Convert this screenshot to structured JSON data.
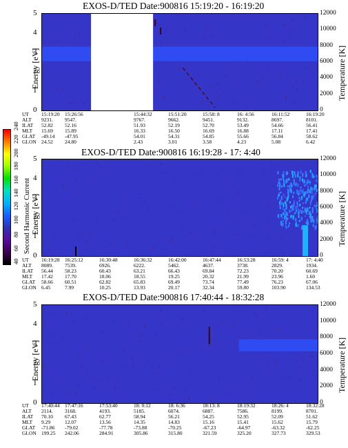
{
  "panels": [
    {
      "title": "EXOS-D/TED   Date:900816  15:19:20 - 16:19:20",
      "y_label": "Energy [eV]",
      "y2_label": "Temperature [K]",
      "y_ticks": [
        "0",
        "1",
        "2",
        "3",
        "4",
        "5"
      ],
      "y2_ticks": [
        "0",
        "2000",
        "4000",
        "6000",
        "8000",
        "10000",
        "12000"
      ],
      "row_labels": [
        "UT",
        "ALT",
        "ILAT",
        "MLT",
        "GLAT",
        "GLON"
      ],
      "columns": [
        [
          "15:19:20",
          "9231.",
          "52.82",
          "15.69",
          "-49.14",
          "24.52"
        ],
        [
          "15:26:56",
          "9547.",
          "52.16",
          "15.89",
          "-47.95",
          "24.80"
        ],
        [
          "",
          "",
          "",
          "",
          "",
          ""
        ],
        [
          "15:44:32",
          "9767.",
          "51.93",
          "16.33",
          "54.01",
          "2.43"
        ],
        [
          "15:51:20",
          "9662.",
          "52.19",
          "16.50",
          "54.31",
          "3.01"
        ],
        [
          "15:58: 8",
          "9451.",
          "52.70",
          "16.69",
          "54.85",
          "3.58"
        ],
        [
          "16: 4:56",
          "9132.",
          "53.49",
          "16.88",
          "55.66",
          "4.23"
        ],
        [
          "16:11:52",
          "8697.",
          "54.66",
          "17.11",
          "56.84",
          "5.08"
        ],
        [
          "16:19:20",
          "8101.",
          "56.41",
          "17.41",
          "58.62",
          "6.42"
        ]
      ]
    },
    {
      "title": "EXOS-D/TED   Date:900816  16:19:28 - 17: 4:40",
      "y_label": "Energy [eV]",
      "y2_label": "Temperature [K]",
      "y_ticks": [
        "0",
        "1",
        "2",
        "3",
        "4",
        "5"
      ],
      "y2_ticks": [
        "0",
        "2000",
        "4000",
        "6000",
        "8000",
        "10000",
        "12000"
      ],
      "row_labels": [
        "UT",
        "ALT",
        "ILAT",
        "MLT",
        "GLAT",
        "GLON"
      ],
      "columns": [
        [
          "16:19:28",
          "8089.",
          "56.44",
          "17.42",
          "58.66",
          "6.45"
        ],
        [
          "16:25:12",
          "7539.",
          "58.23",
          "17.70",
          "60.51",
          "7.99"
        ],
        [
          "16:30:48",
          "6926.",
          "60.43",
          "18.06",
          "62.82",
          "10.25"
        ],
        [
          "16:36:32",
          "6222.",
          "63.21",
          "18.55",
          "65.83",
          "13.93"
        ],
        [
          "16:42:00",
          "5462.",
          "66.43",
          "19.25",
          "69.49",
          "20.17"
        ],
        [
          "16:47:44",
          "4637.",
          "69.84",
          "20.32",
          "73.74",
          "32.34"
        ],
        [
          "16:53:28",
          "3738.",
          "72.23",
          "21.99",
          "77.49",
          "59.80"
        ],
        [
          "16:59: 4",
          "2829.",
          "70.20",
          "23.96",
          "76.23",
          "103.90"
        ],
        [
          "17: 4:40",
          "1934.",
          "60.69",
          "1.60",
          "67.06",
          "134.53"
        ]
      ]
    },
    {
      "title": "EXOS-D/TED   Date:900816  17:40:44 - 18:32:28",
      "y_label": "Energy [eV]",
      "y2_label": "Temperature [K]",
      "y_ticks": [
        "0",
        "1",
        "2",
        "3",
        "4",
        "5"
      ],
      "y2_ticks": [
        "0",
        "2000",
        "4000",
        "6000",
        "8000",
        "10000",
        "12000"
      ],
      "row_labels": [
        "UT",
        "ALT",
        "ILAT",
        "MLT",
        "GLAT",
        "GLON"
      ],
      "columns": [
        [
          "17:40:44",
          "2114.",
          "70.10",
          "9.29",
          "-71.86",
          "199.25"
        ],
        [
          "17:47:16",
          "3168.",
          "67.43",
          "12.07",
          "-79.02",
          "242.06"
        ],
        [
          "17:53:40",
          "4193.",
          "62.77",
          "13.56",
          "-77.78",
          "284.91"
        ],
        [
          "18: 0:12",
          "5185.",
          "58.94",
          "14.35",
          "-73.88",
          "305.86"
        ],
        [
          "18: 6:36",
          "6074.",
          "56.21",
          "14.83",
          "-70.25",
          "315.80"
        ],
        [
          "18:13: 8",
          "6887.",
          "54.25",
          "15.16",
          "-67.23",
          "321.59"
        ],
        [
          "18:19:32",
          "7586.",
          "52.95",
          "15.41",
          "-64.97",
          "325.20"
        ],
        [
          "18:26: 4",
          "8199.",
          "52.09",
          "15.62",
          "-63.32",
          "327.73"
        ],
        [
          "18:32:28",
          "8701.",
          "51.62",
          "15.79",
          "-62.25",
          "329.53"
        ]
      ]
    }
  ],
  "colorbar": {
    "label": "Second Harmonic Current",
    "ticks": [
      "40",
      "60",
      "80",
      "100",
      "120",
      "140",
      "160",
      "180",
      "200",
      "220",
      "240"
    ]
  },
  "colors": {
    "background": "#3535c8",
    "band": "#2f4cf2",
    "gap": "#ffffff",
    "streak": "#6a1010"
  },
  "chart_data": [
    {
      "type": "heatmap",
      "title": "EXOS-D/TED   Date:900816  15:19:20 - 16:19:20",
      "ylabel": "Energy [eV]",
      "y2label": "Temperature [K]",
      "ylim": [
        0,
        5
      ],
      "y2lim": [
        0,
        12000
      ],
      "x_start": "15:19:20",
      "x_end": "16:19:20",
      "features": {
        "band_energy_range": [
          2.55,
          3.3
        ],
        "data_gap_ut": [
          "15:30:00",
          "15:43:30"
        ],
        "descending_trace_ut": [
          "15:50:00",
          "15:57:00"
        ]
      }
    },
    {
      "type": "heatmap",
      "title": "EXOS-D/TED   Date:900816  16:19:28 - 17: 4:40",
      "ylabel": "Energy [eV]",
      "y2label": "Temperature [K]",
      "ylim": [
        0,
        5
      ],
      "y2lim": [
        0,
        12000
      ],
      "x_start": "16:19:28",
      "x_end": "17: 4:40",
      "features": {
        "enhanced_region_ut": [
          "16:58:00",
          "17: 4:40"
        ],
        "enhanced_energy_range": [
          1.5,
          4.5
        ]
      }
    },
    {
      "type": "heatmap",
      "title": "EXOS-D/TED   Date:900816  17:40:44 - 18:32:28",
      "ylabel": "Energy [eV]",
      "y2label": "Temperature [K]",
      "ylim": [
        0,
        5
      ],
      "y2lim": [
        0,
        12000
      ],
      "x_start": "17:40:44",
      "x_end": "18:32:28",
      "features": {
        "band_energy_range": [
          2.65,
          3.25
        ],
        "band_start_ut": "18:17:40"
      }
    }
  ]
}
